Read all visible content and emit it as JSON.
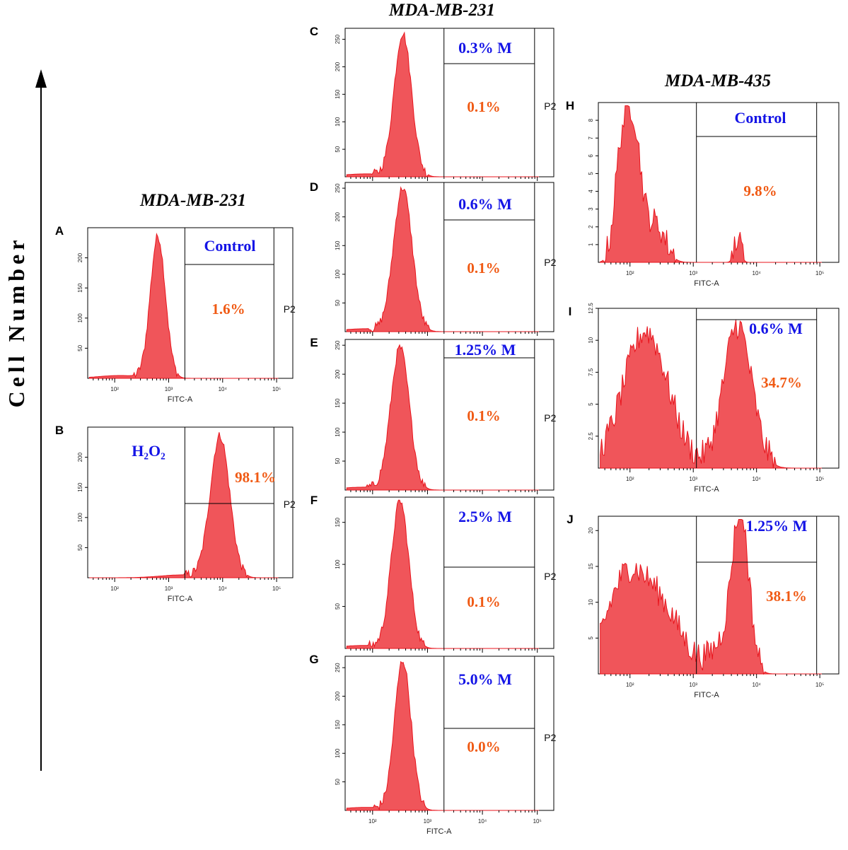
{
  "headers": {
    "col1": "MDA-MB-231",
    "col2": "MDA-MB-231",
    "col3": "MDA-MB-435"
  },
  "y_axis_label": "Cell Number",
  "colors": {
    "fill": "#f0555a",
    "stroke": "#e8141c",
    "treatment": "#1414e6",
    "percent": "#f05a14"
  },
  "chart_data": [
    {
      "type": "area",
      "panel": "A",
      "treatment": "Control",
      "percent": "1.6%",
      "gate": "P2",
      "xlabel": "FITC-A",
      "ymax": 250,
      "yticks": [
        50,
        100,
        150,
        200
      ],
      "ytick_labels": [
        "50",
        "100",
        "150",
        "200"
      ],
      "xticks": [
        "10²",
        "10³",
        "10⁴",
        "10⁵"
      ],
      "xmin_log": 1.5,
      "xmax_log": 5.3,
      "gate_log": 3.3,
      "p2_log": 4.95,
      "peak_log": 2.8,
      "peak": 235,
      "sigma": 0.14
    },
    {
      "type": "area",
      "panel": "B",
      "treatment": "H₂O₂",
      "percent": "98.1%",
      "gate": "P2",
      "xlabel": "FITC-A",
      "ymax": 250,
      "yticks": [
        50,
        100,
        150,
        200
      ],
      "ytick_labels": [
        "50",
        "100",
        "150",
        "200"
      ],
      "xticks": [
        "10²",
        "10³",
        "10⁴",
        "10⁵"
      ],
      "xmin_log": 1.5,
      "xmax_log": 5.3,
      "gate_log": 3.3,
      "p2_log": 4.95,
      "peak_log": 3.95,
      "peak": 235,
      "sigma": 0.18
    },
    {
      "type": "area",
      "panel": "C",
      "treatment": "0.3% M",
      "percent": "0.1%",
      "gate": "P2",
      "ymax": 270,
      "yticks": [
        50,
        100,
        150,
        200,
        250
      ],
      "ytick_labels": [
        "50",
        "100",
        "150",
        "200",
        "250"
      ],
      "xmin_log": 1.5,
      "xmax_log": 5.3,
      "gate_log": 3.3,
      "p2_log": 4.95,
      "peak_log": 2.55,
      "peak": 260,
      "sigma": 0.16
    },
    {
      "type": "area",
      "panel": "D",
      "treatment": "0.6% M",
      "percent": "0.1%",
      "gate": "P2",
      "ymax": 260,
      "yticks": [
        50,
        100,
        150,
        200,
        250
      ],
      "ytick_labels": [
        "50",
        "100",
        "150",
        "200",
        "250"
      ],
      "xmin_log": 1.5,
      "xmax_log": 5.3,
      "gate_log": 3.3,
      "p2_log": 4.95,
      "peak_log": 2.55,
      "peak": 250,
      "sigma": 0.17
    },
    {
      "type": "area",
      "panel": "E",
      "treatment": "1.25% M",
      "percent": "0.1%",
      "gate": "P2",
      "ymax": 260,
      "yticks": [
        50,
        100,
        150,
        200,
        250
      ],
      "ytick_labels": [
        "50",
        "100",
        "150",
        "200",
        "250"
      ],
      "xmin_log": 1.5,
      "xmax_log": 5.3,
      "gate_log": 3.3,
      "p2_log": 4.95,
      "peak_log": 2.5,
      "peak": 245,
      "sigma": 0.17
    },
    {
      "type": "area",
      "panel": "F",
      "treatment": "2.5% M",
      "percent": "0.1%",
      "gate": "P2",
      "ymax": 180,
      "yticks": [
        50,
        100,
        150
      ],
      "ytick_labels": [
        "50",
        "100",
        "150"
      ],
      "xmin_log": 1.5,
      "xmax_log": 5.3,
      "gate_log": 3.3,
      "p2_log": 4.95,
      "peak_log": 2.5,
      "peak": 175,
      "sigma": 0.16
    },
    {
      "type": "area",
      "panel": "G",
      "treatment": "5.0% M",
      "percent": "0.0%",
      "gate": "P2",
      "xlabel": "FITC-A",
      "ymax": 270,
      "yticks": [
        50,
        100,
        150,
        200,
        250
      ],
      "ytick_labels": [
        "50",
        "100",
        "150",
        "200",
        "250"
      ],
      "xticks": [
        "10²",
        "10³",
        "10⁴",
        "10⁵"
      ],
      "xmin_log": 1.5,
      "xmax_log": 5.3,
      "gate_log": 3.3,
      "p2_log": 4.95,
      "peak_log": 2.55,
      "peak": 262,
      "sigma": 0.15
    },
    {
      "type": "area",
      "panel": "H",
      "treatment": "Control",
      "percent": "9.8%",
      "xlabel": "FITC-A",
      "ymax": 9,
      "yticks": [
        1,
        2,
        3,
        4,
        5,
        6,
        7,
        8
      ],
      "ytick_labels": [
        "1",
        "2",
        "3",
        "4",
        "5",
        "6",
        "7",
        "8"
      ],
      "xticks": [
        "10²",
        "10³",
        "10⁴",
        "10⁵"
      ],
      "xmin_log": 1.5,
      "xmax_log": 5.3,
      "gate_log": 3.05,
      "p2_log": 4.95,
      "noisy": true,
      "components": [
        {
          "mu": 1.85,
          "a": 5,
          "s": 0.1
        },
        {
          "mu": 2.05,
          "a": 7.5,
          "s": 0.12
        },
        {
          "mu": 2.4,
          "a": 2,
          "s": 0.15
        },
        {
          "mu": 3.7,
          "a": 1.2,
          "s": 0.05
        }
      ]
    },
    {
      "type": "area",
      "panel": "I",
      "treatment": "0.6% M",
      "percent": "34.7%",
      "xlabel": "FITC-A",
      "ymax": 12.5,
      "yticks": [
        2.5,
        5,
        7.5,
        10,
        12.5
      ],
      "ytick_labels": [
        "2.5",
        "5",
        "7.5",
        "10",
        "12.5"
      ],
      "xticks": [
        "10²",
        "10³",
        "10⁴",
        "10⁵"
      ],
      "xmin_log": 1.5,
      "xmax_log": 5.3,
      "gate_log": 3.05,
      "p2_log": 4.95,
      "noisy": true,
      "components": [
        {
          "mu": 2.25,
          "a": 10.5,
          "s": 0.35
        },
        {
          "mu": 3.7,
          "a": 11,
          "s": 0.22
        }
      ]
    },
    {
      "type": "area",
      "panel": "J",
      "treatment": "1.25% M",
      "percent": "38.1%",
      "xlabel": "FITC-A",
      "ymax": 22,
      "yticks": [
        5,
        10,
        15,
        20
      ],
      "ytick_labels": [
        "5",
        "10",
        "15",
        "20"
      ],
      "xticks": [
        "10²",
        "10³",
        "10⁴",
        "10⁵"
      ],
      "xmin_log": 1.5,
      "xmax_log": 5.3,
      "gate_log": 3.05,
      "p2_log": 4.95,
      "noisy": true,
      "components": [
        {
          "mu": 1.9,
          "a": 11,
          "s": 0.3
        },
        {
          "mu": 2.45,
          "a": 9,
          "s": 0.35
        },
        {
          "mu": 3.75,
          "a": 21,
          "s": 0.13
        },
        {
          "mu": 3.5,
          "a": 4,
          "s": 0.2
        }
      ]
    }
  ]
}
